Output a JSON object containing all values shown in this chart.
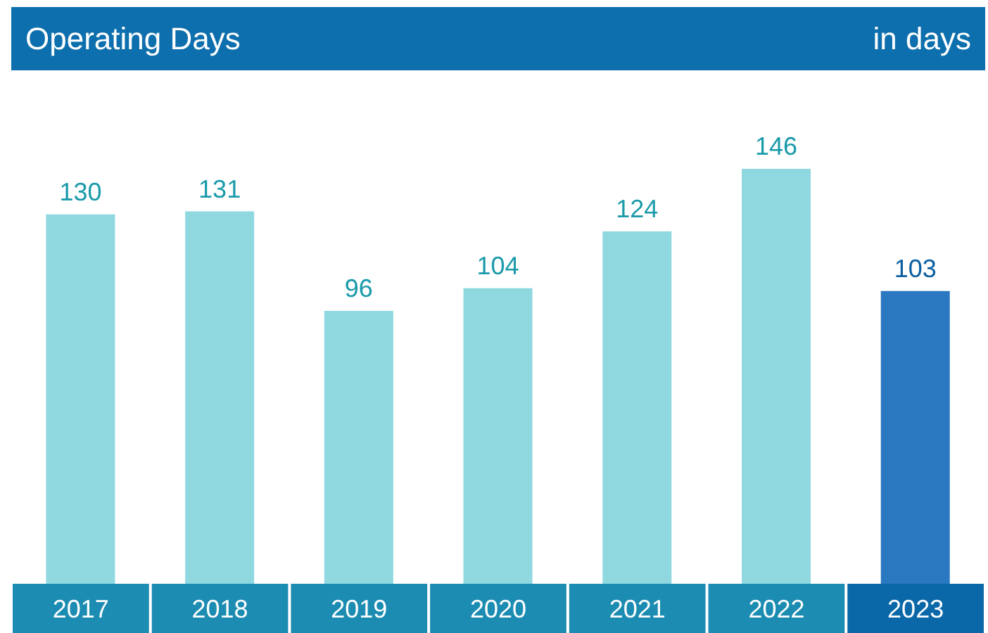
{
  "chart_data": {
    "type": "bar",
    "title": "Operating Days",
    "ylabel": "in days",
    "categories": [
      "2017",
      "2018",
      "2019",
      "2020",
      "2021",
      "2022",
      "2023"
    ],
    "values": [
      130,
      131,
      96,
      104,
      124,
      146,
      103
    ],
    "colors": [
      "#8fd8e0",
      "#8fd8e0",
      "#8fd8e0",
      "#8fd8e0",
      "#8fd8e0",
      "#8fd8e0",
      "#2a78c0"
    ],
    "data_labels": true
  }
}
